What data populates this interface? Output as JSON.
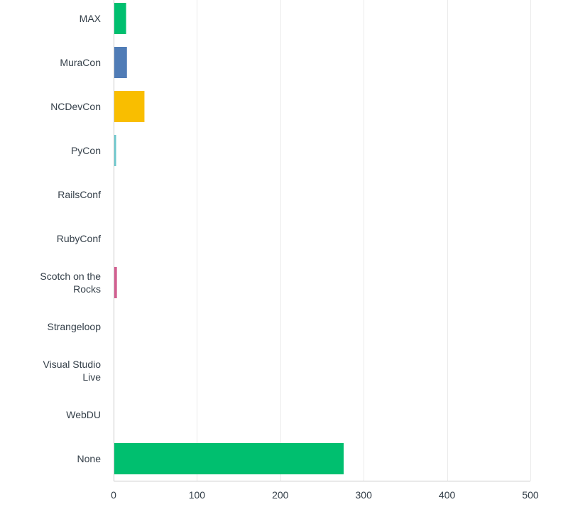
{
  "chart_data": {
    "type": "bar",
    "orientation": "horizontal",
    "categories": [
      [
        "MAX"
      ],
      [
        "MuraCon"
      ],
      [
        "NCDevCon"
      ],
      [
        "PyCon"
      ],
      [
        "RailsConf"
      ],
      [
        "RubyConf"
      ],
      [
        "Scotch on the",
        "Rocks"
      ],
      [
        "Strangeloop"
      ],
      [
        "Visual Studio",
        "Live"
      ],
      [
        "WebDU"
      ],
      [
        "None"
      ]
    ],
    "values": [
      15,
      16,
      37,
      3,
      0,
      0,
      4,
      0,
      0,
      0,
      276
    ],
    "colors": [
      "#00bf6f",
      "#507cb6",
      "#f9be00",
      "#6bc8cd",
      "#7d7d7d",
      "#7d7d7d",
      "#d25f90",
      "#7d7d7d",
      "#7d7d7d",
      "#7d7d7d",
      "#00bf6f"
    ],
    "xlim": [
      0,
      500
    ],
    "ticks": [
      0,
      100,
      200,
      300,
      400,
      500
    ],
    "grid": true,
    "title": "",
    "xlabel": "",
    "ylabel": ""
  }
}
